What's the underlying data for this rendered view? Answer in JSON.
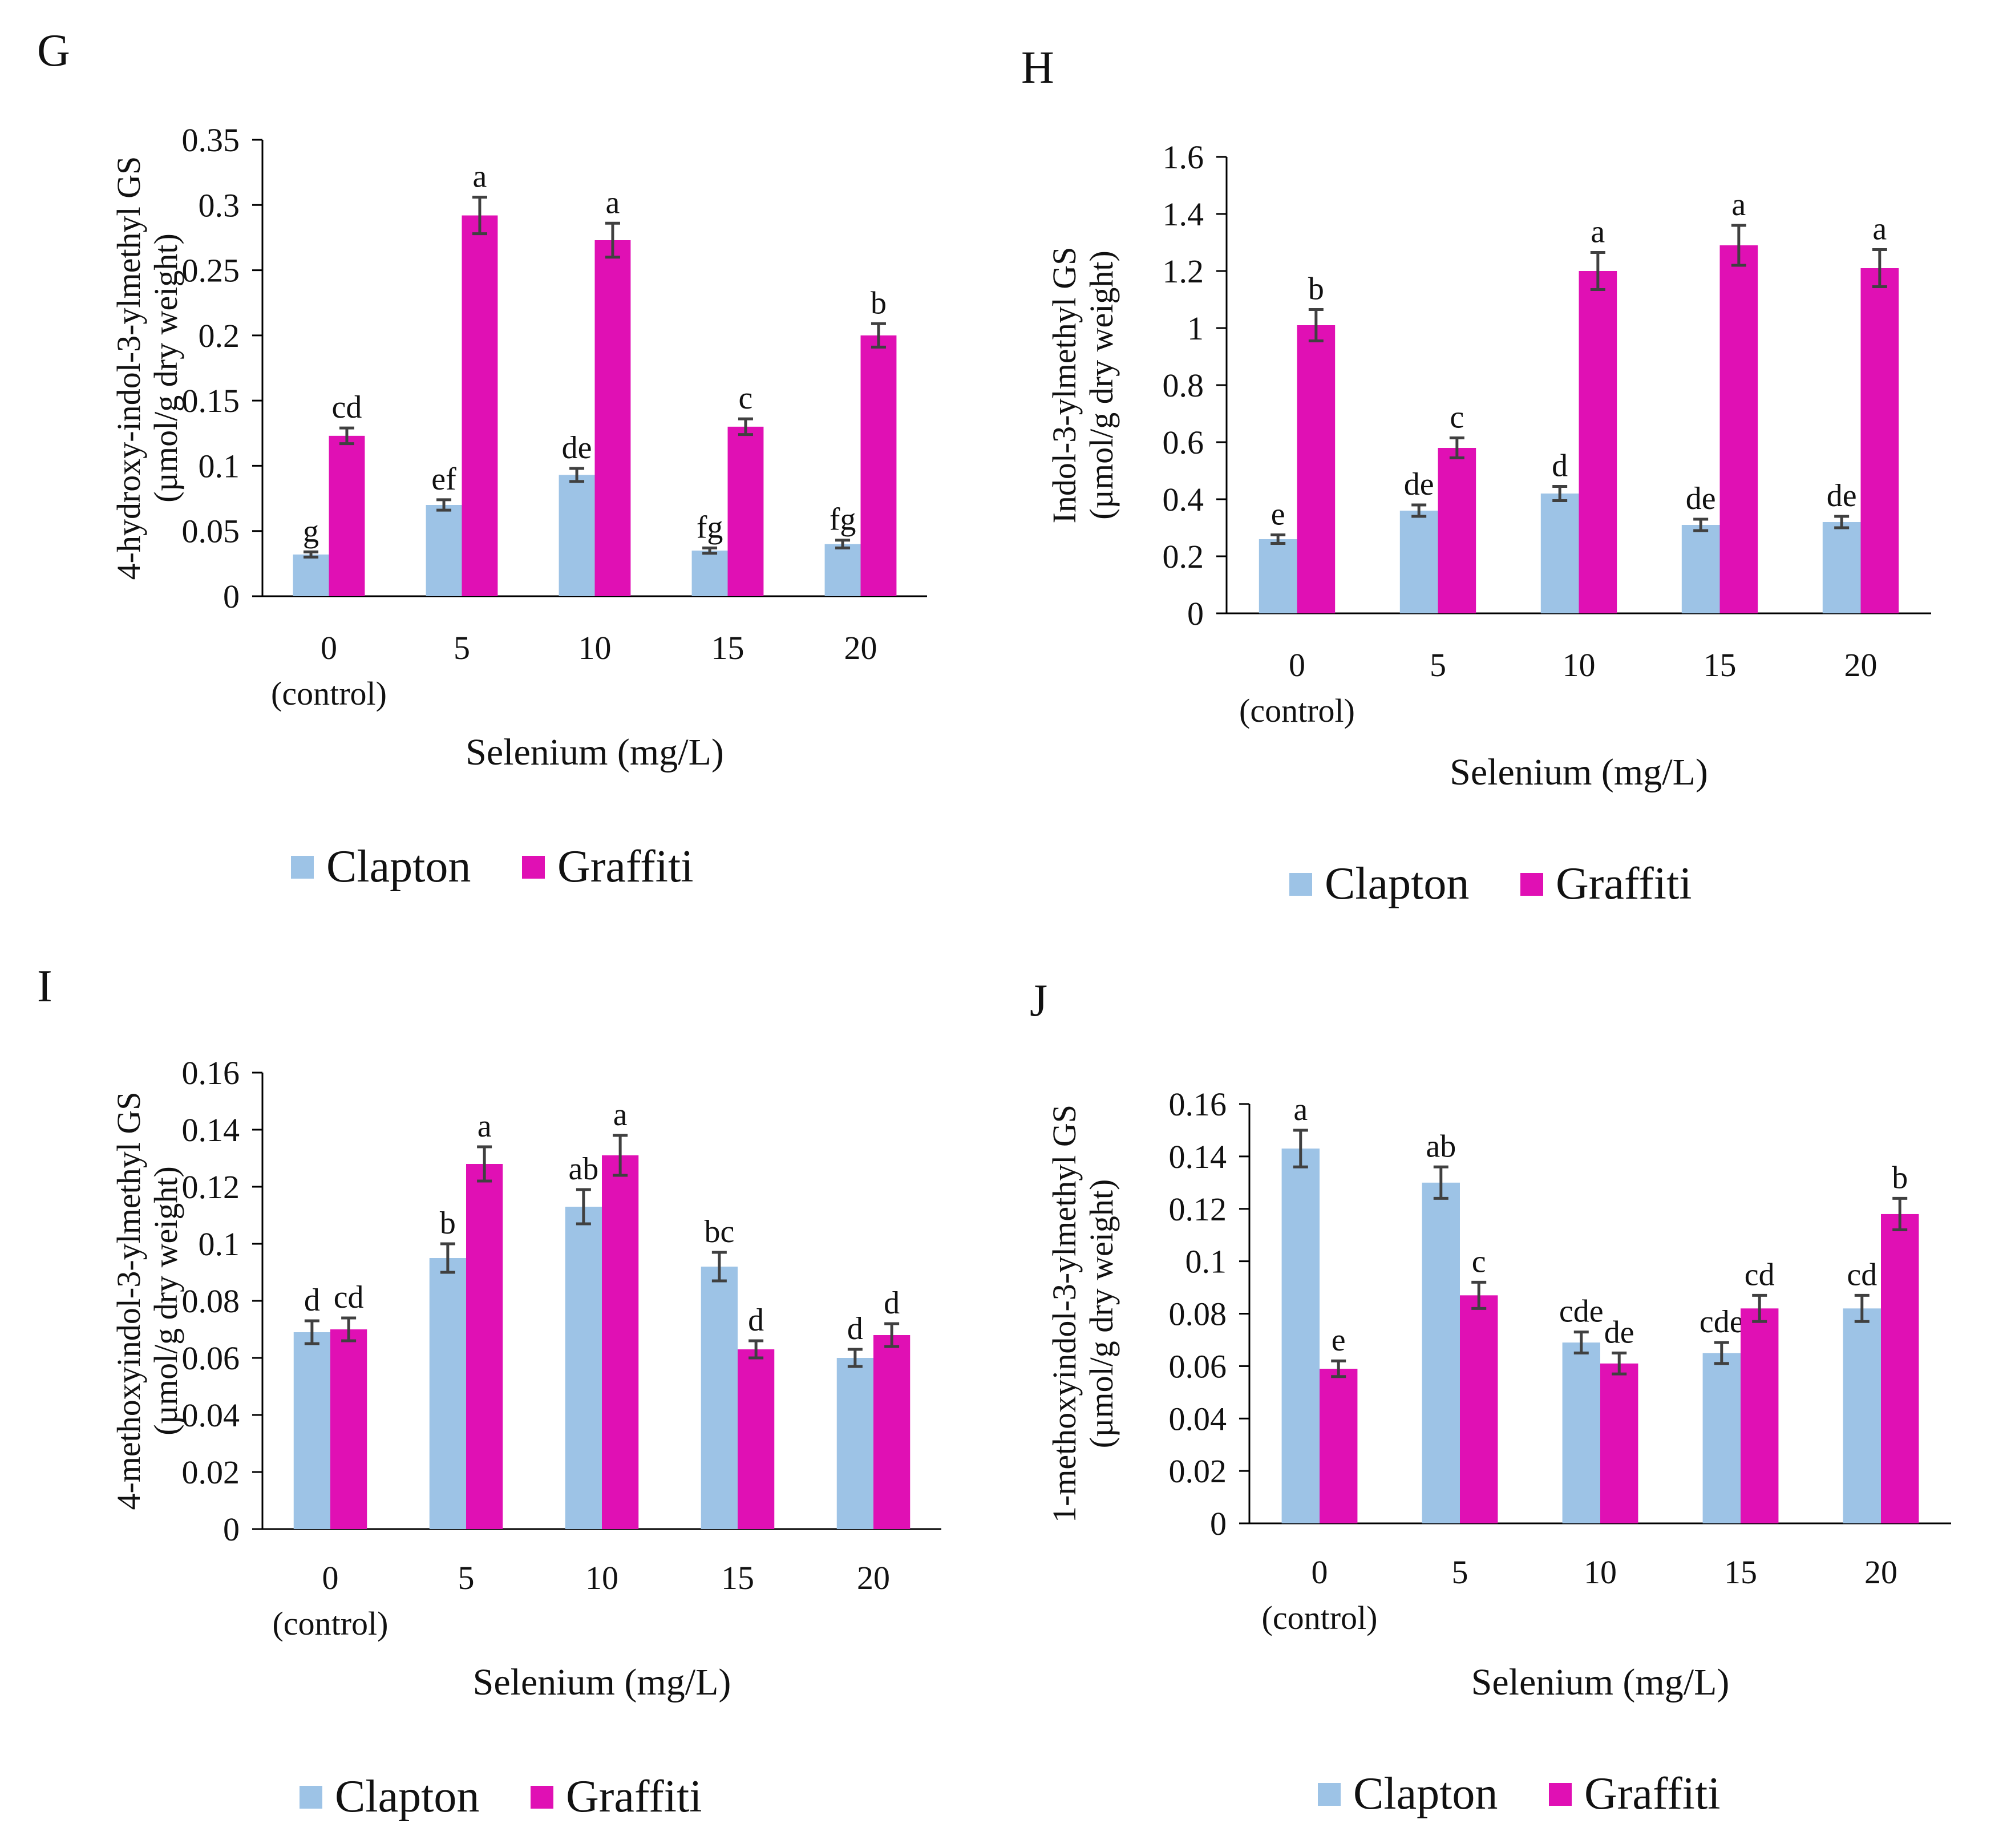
{
  "colors": {
    "clapton": "#9dc3e6",
    "graffiti": "#e010b4",
    "axis": "#000000",
    "error_bar": "#404040"
  },
  "chart_data": [
    {
      "panel": "G",
      "type": "bar",
      "title": "",
      "ylabel_line1": "4-hydroxy-indol-3-ylmethyl  GS",
      "ylabel_line2": "(µmol/g dry weight)",
      "xlabel": "Selenium (mg/L)",
      "categories": [
        "0",
        "5",
        "10",
        "15",
        "20"
      ],
      "category_sublabels": [
        "(control)",
        "",
        "",
        "",
        ""
      ],
      "ylim": [
        0,
        0.35
      ],
      "yticks": [
        "0",
        "0.05",
        "0.1",
        "0.15",
        "0.2",
        "0.25",
        "0.3",
        "0.35"
      ],
      "legend": [
        "Clapton",
        "Graffiti"
      ],
      "series": [
        {
          "name": "Clapton",
          "values": [
            0.032,
            0.07,
            0.093,
            0.035,
            0.04
          ],
          "errors": [
            0.002,
            0.004,
            0.005,
            0.002,
            0.003
          ],
          "letters": [
            "g",
            "ef",
            "de",
            "fg",
            "fg"
          ]
        },
        {
          "name": "Graffiti",
          "values": [
            0.123,
            0.292,
            0.273,
            0.13,
            0.2
          ],
          "errors": [
            0.006,
            0.014,
            0.013,
            0.006,
            0.009
          ],
          "letters": [
            "cd",
            "a",
            "a",
            "c",
            "b"
          ]
        }
      ]
    },
    {
      "panel": "H",
      "type": "bar",
      "title": "",
      "ylabel_line1": "Indol-3-ylmethyl  GS",
      "ylabel_line2": "(µmol/g dry weight)",
      "xlabel": "Selenium (mg/L)",
      "categories": [
        "0",
        "5",
        "10",
        "15",
        "20"
      ],
      "category_sublabels": [
        "(control)",
        "",
        "",
        "",
        ""
      ],
      "ylim": [
        0,
        1.6
      ],
      "yticks": [
        "0",
        "0.2",
        "0.4",
        "0.6",
        "0.8",
        "1",
        "1.2",
        "1.4",
        "1.6"
      ],
      "legend": [
        "Clapton",
        "Graffiti"
      ],
      "series": [
        {
          "name": "Clapton",
          "values": [
            0.26,
            0.36,
            0.42,
            0.31,
            0.32
          ],
          "errors": [
            0.015,
            0.02,
            0.025,
            0.02,
            0.02
          ],
          "letters": [
            "e",
            "de",
            "d",
            "de",
            "de"
          ]
        },
        {
          "name": "Graffiti",
          "values": [
            1.01,
            0.58,
            1.2,
            1.29,
            1.21
          ],
          "errors": [
            0.055,
            0.035,
            0.065,
            0.07,
            0.065
          ],
          "letters": [
            "b",
            "c",
            "a",
            "a",
            "a"
          ]
        }
      ]
    },
    {
      "panel": "I",
      "type": "bar",
      "title": "",
      "ylabel_line1": "4-methoxyindol-3-ylmethyl  GS",
      "ylabel_line2": "(µmol/g dry weight)",
      "xlabel": "Selenium (mg/L)",
      "categories": [
        "0",
        "5",
        "10",
        "15",
        "20"
      ],
      "category_sublabels": [
        "(control)",
        "",
        "",
        "",
        ""
      ],
      "ylim": [
        0,
        0.16
      ],
      "yticks": [
        "0",
        "0.02",
        "0.04",
        "0.06",
        "0.08",
        "0.1",
        "0.12",
        "0.14",
        "0.16"
      ],
      "legend": [
        "Clapton",
        "Graffiti"
      ],
      "series": [
        {
          "name": "Clapton",
          "values": [
            0.069,
            0.095,
            0.113,
            0.092,
            0.06
          ],
          "errors": [
            0.004,
            0.005,
            0.006,
            0.005,
            0.003
          ],
          "letters": [
            "d",
            "b",
            "ab",
            "bc",
            "d"
          ]
        },
        {
          "name": "Graffiti",
          "values": [
            0.07,
            0.128,
            0.131,
            0.063,
            0.068
          ],
          "errors": [
            0.004,
            0.006,
            0.007,
            0.003,
            0.004
          ],
          "letters": [
            "cd",
            "a",
            "a",
            "d",
            "d"
          ]
        }
      ]
    },
    {
      "panel": "J",
      "type": "bar",
      "title": "",
      "ylabel_line1": "1-methoxyindol-3-ylmethyl  GS",
      "ylabel_line2": "(µmol/g dry weight)",
      "xlabel": "Selenium (mg/L)",
      "categories": [
        "0",
        "5",
        "10",
        "15",
        "20"
      ],
      "category_sublabels": [
        "(control)",
        "",
        "",
        "",
        ""
      ],
      "ylim": [
        0,
        0.16
      ],
      "yticks": [
        "0",
        "0.02",
        "0.04",
        "0.06",
        "0.08",
        "0.1",
        "0.12",
        "0.14",
        "0.16"
      ],
      "legend": [
        "Clapton",
        "Graffiti"
      ],
      "series": [
        {
          "name": "Clapton",
          "values": [
            0.143,
            0.13,
            0.069,
            0.065,
            0.082
          ],
          "errors": [
            0.007,
            0.006,
            0.004,
            0.004,
            0.005
          ],
          "letters": [
            "a",
            "ab",
            "cde",
            "cde",
            "cd"
          ]
        },
        {
          "name": "Graffiti",
          "values": [
            0.059,
            0.087,
            0.061,
            0.082,
            0.118
          ],
          "errors": [
            0.003,
            0.005,
            0.004,
            0.005,
            0.006
          ],
          "letters": [
            "e",
            "c",
            "de",
            "cd",
            "b"
          ]
        }
      ]
    }
  ]
}
